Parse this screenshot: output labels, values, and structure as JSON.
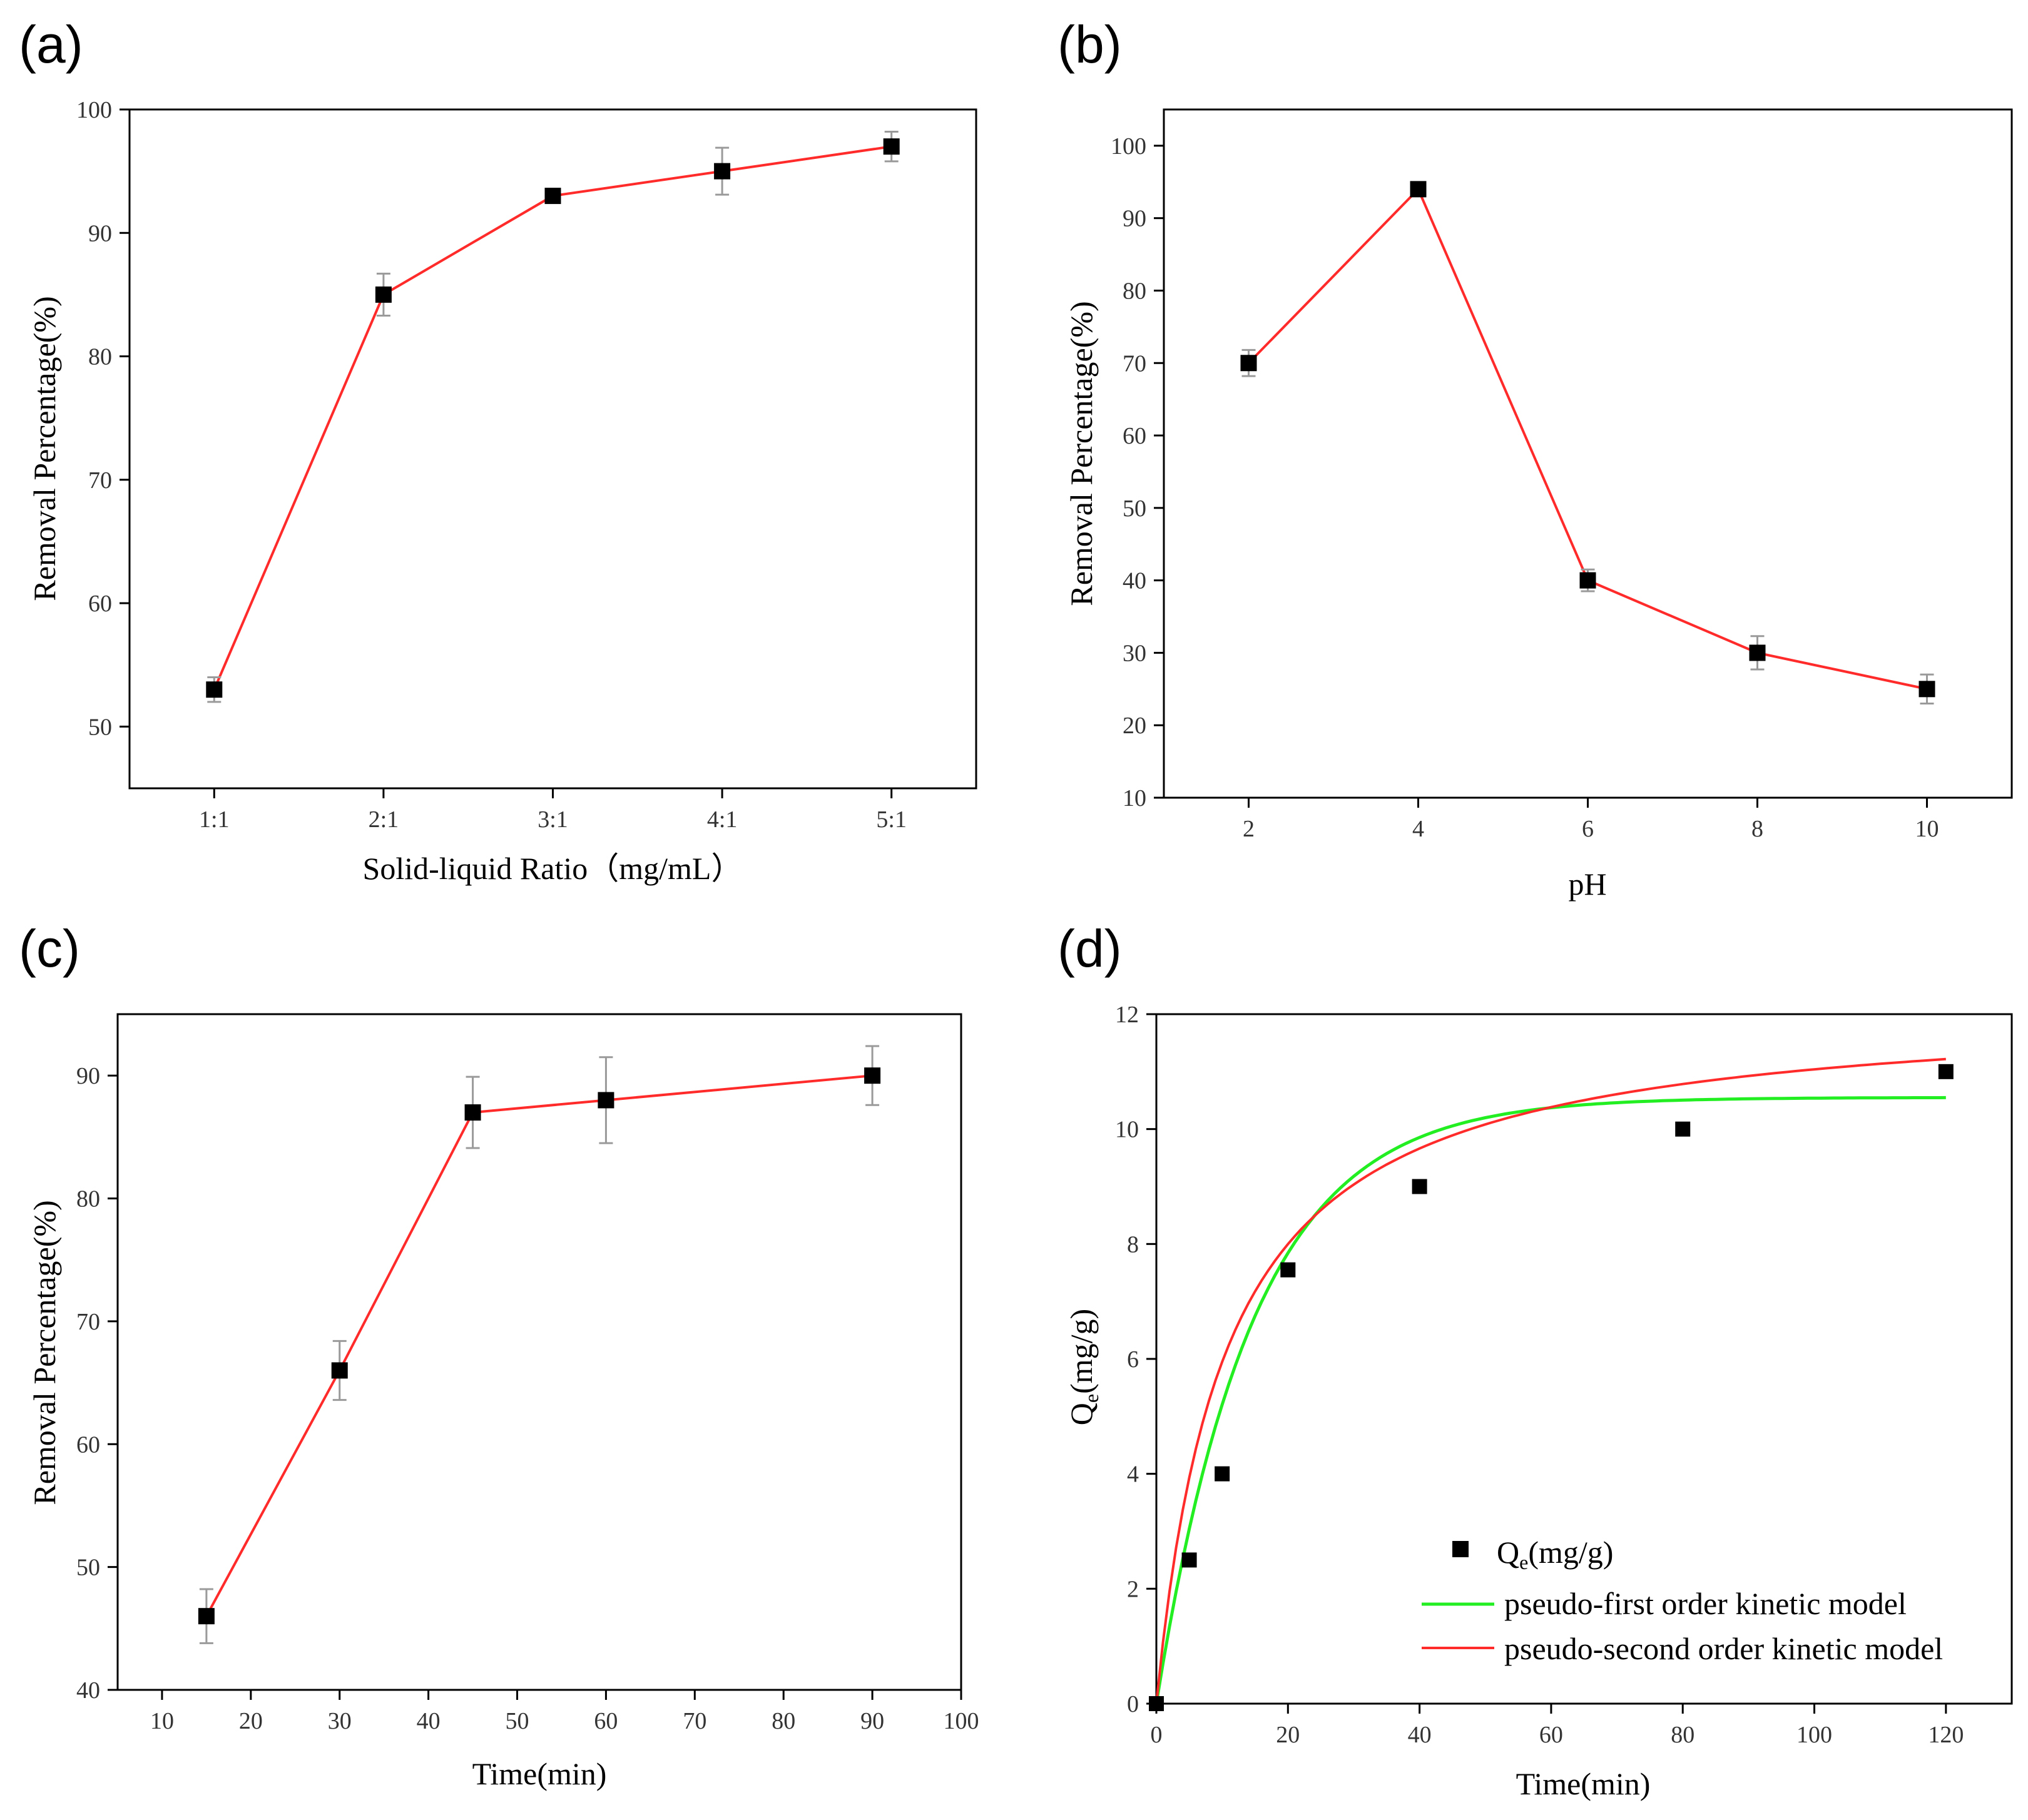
{
  "panels": [
    {
      "id": "a",
      "label": "(a)",
      "xlabel": "Solid-liquid Ratio（mg/mL）",
      "ylabel": "Removal Percentage(%)",
      "xticks": [
        "1:1",
        "2:1",
        "3:1",
        "4:1",
        "5:1"
      ],
      "yticks": [
        "50",
        "60",
        "70",
        "80",
        "90",
        "100"
      ]
    },
    {
      "id": "b",
      "label": "(b)",
      "xlabel": "pH",
      "ylabel": "Removal Percentage(%)",
      "xticks": [
        "2",
        "4",
        "6",
        "8",
        "10"
      ],
      "yticks": [
        "10",
        "20",
        "30",
        "40",
        "50",
        "60",
        "70",
        "80",
        "90",
        "100"
      ]
    },
    {
      "id": "c",
      "label": "(c)",
      "xlabel": "Time(min)",
      "ylabel": "Removal Percentage(%)",
      "xticks": [
        "10",
        "20",
        "30",
        "40",
        "50",
        "60",
        "70",
        "80",
        "90",
        "100"
      ],
      "yticks": [
        "40",
        "50",
        "60",
        "70",
        "80",
        "90"
      ]
    },
    {
      "id": "d",
      "label": "(d)",
      "xlabel": "Time(min)",
      "ylabel_main": "Q",
      "ylabel_sub": "e",
      "ylabel_rest": "(mg/g)",
      "xticks": [
        "0",
        "20",
        "40",
        "60",
        "80",
        "100",
        "120"
      ],
      "yticks": [
        "0",
        "2",
        "4",
        "6",
        "8",
        "10",
        "12"
      ],
      "legend": {
        "marker_main": "Q",
        "marker_sub": "e",
        "marker_rest": "(mg/g)",
        "first_order": "pseudo-first order kinetic model",
        "second_order": "pseudo-second order kinetic model"
      }
    }
  ],
  "chart_data": [
    {
      "panel": "a",
      "type": "line",
      "title": "",
      "xlabel": "Solid-liquid Ratio（mg/mL）",
      "ylabel": "Removal Percentage(%)",
      "categories": [
        "1:1",
        "2:1",
        "3:1",
        "4:1",
        "5:1"
      ],
      "values": [
        53,
        85,
        93,
        95,
        97
      ],
      "errors": [
        1.0,
        1.7,
        0,
        1.9,
        1.2
      ],
      "ylim": [
        45,
        100
      ],
      "line_color": "#ff2a2a",
      "marker_color": "#000000"
    },
    {
      "panel": "b",
      "type": "line",
      "title": "",
      "xlabel": "pH",
      "ylabel": "Removal Percentage(%)",
      "x": [
        2,
        4,
        6,
        8,
        10
      ],
      "values": [
        70,
        94,
        40,
        30,
        25
      ],
      "errors": [
        1.8,
        0.8,
        1.5,
        2.3,
        2.0
      ],
      "xlim": [
        1,
        11
      ],
      "ylim": [
        10,
        105
      ],
      "line_color": "#ff2a2a",
      "marker_color": "#000000"
    },
    {
      "panel": "c",
      "type": "line",
      "title": "",
      "xlabel": "Time(min)",
      "ylabel": "Removal Percentage(%)",
      "x": [
        15,
        30,
        45,
        60,
        90
      ],
      "values": [
        46,
        66,
        87,
        88,
        90
      ],
      "errors": [
        2.2,
        2.4,
        2.9,
        3.5,
        2.4
      ],
      "xlim": [
        5,
        100
      ],
      "ylim": [
        40,
        95
      ],
      "line_color": "#ff2a2a",
      "marker_color": "#000000"
    },
    {
      "panel": "d",
      "type": "scatter",
      "title": "",
      "xlabel": "Time(min)",
      "ylabel": "Qe(mg/g)",
      "xlim": [
        0,
        130
      ],
      "ylim": [
        0,
        12
      ],
      "points": {
        "name": "Qe(mg/g)",
        "x": [
          0,
          5,
          10,
          20,
          40,
          80,
          120
        ],
        "y": [
          0,
          2.5,
          4.0,
          7.55,
          9.0,
          10.0,
          11.0
        ],
        "color": "#000000"
      },
      "series": [
        {
          "name": "pseudo-first order kinetic model",
          "type": "line",
          "color": "#22ee22",
          "model": "first_order",
          "qe": 10.55,
          "k": 0.068,
          "x_range": [
            0,
            120
          ]
        },
        {
          "name": "pseudo-second order kinetic model",
          "type": "line",
          "color": "#ff2a2a",
          "model": "second_order",
          "qe": 12.2,
          "k": 0.0078,
          "x_range": [
            0,
            120
          ]
        }
      ]
    }
  ]
}
